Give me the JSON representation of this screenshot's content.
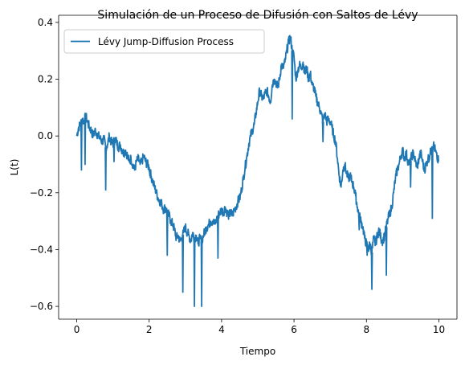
{
  "chart_data": {
    "type": "line",
    "title": "Simulación de un Proceso de Difusión con Saltos de Lévy",
    "xlabel": "Tiempo",
    "ylabel": "L(t)",
    "xlim": [
      -0.5,
      10.5
    ],
    "ylim": [
      -0.645,
      0.425
    ],
    "xticks": [
      0,
      2,
      4,
      6,
      8,
      10
    ],
    "yticks": [
      -0.6,
      -0.4,
      -0.2,
      0.0,
      0.2,
      0.4
    ],
    "xtick_labels": [
      "0",
      "2",
      "4",
      "6",
      "8",
      "10"
    ],
    "ytick_labels": [
      "−0.6",
      "−0.4",
      "−0.2",
      "0.0",
      "0.2",
      "0.4"
    ],
    "grid": false,
    "legend_position": "top-left",
    "colors": {
      "series": "#1f77b4"
    },
    "series": [
      {
        "name": "Lévy Jump-Diffusion Process",
        "x": [
          0.0,
          0.05,
          0.1,
          0.15,
          0.2,
          0.25,
          0.3,
          0.35,
          0.4,
          0.45,
          0.5,
          0.55,
          0.6,
          0.65,
          0.7,
          0.75,
          0.8,
          0.85,
          0.9,
          0.95,
          1.0,
          1.05,
          1.1,
          1.15,
          1.2,
          1.25,
          1.3,
          1.35,
          1.4,
          1.45,
          1.5,
          1.55,
          1.6,
          1.65,
          1.7,
          1.75,
          1.8,
          1.85,
          1.9,
          1.95,
          2.0,
          2.05,
          2.1,
          2.15,
          2.2,
          2.25,
          2.3,
          2.35,
          2.4,
          2.45,
          2.5,
          2.55,
          2.6,
          2.65,
          2.7,
          2.75,
          2.8,
          2.85,
          2.9,
          2.95,
          3.0,
          3.05,
          3.1,
          3.15,
          3.2,
          3.25,
          3.3,
          3.35,
          3.4,
          3.45,
          3.5,
          3.55,
          3.6,
          3.65,
          3.7,
          3.75,
          3.8,
          3.85,
          3.9,
          3.95,
          4.0,
          4.05,
          4.1,
          4.15,
          4.2,
          4.25,
          4.3,
          4.35,
          4.4,
          4.45,
          4.5,
          4.55,
          4.6,
          4.65,
          4.7,
          4.75,
          4.8,
          4.85,
          4.9,
          4.95,
          5.0,
          5.05,
          5.1,
          5.15,
          5.2,
          5.25,
          5.3,
          5.35,
          5.4,
          5.45,
          5.5,
          5.55,
          5.6,
          5.65,
          5.7,
          5.75,
          5.8,
          5.85,
          5.9,
          5.95,
          6.0,
          6.05,
          6.1,
          6.15,
          6.2,
          6.25,
          6.3,
          6.35,
          6.4,
          6.45,
          6.5,
          6.55,
          6.6,
          6.65,
          6.7,
          6.75,
          6.8,
          6.85,
          6.9,
          6.95,
          7.0,
          7.05,
          7.1,
          7.15,
          7.2,
          7.25,
          7.3,
          7.35,
          7.4,
          7.45,
          7.5,
          7.55,
          7.6,
          7.65,
          7.7,
          7.75,
          7.8,
          7.85,
          7.9,
          7.95,
          8.0,
          8.05,
          8.1,
          8.15,
          8.2,
          8.25,
          8.3,
          8.35,
          8.4,
          8.45,
          8.5,
          8.55,
          8.6,
          8.65,
          8.7,
          8.75,
          8.8,
          8.85,
          8.9,
          8.95,
          9.0,
          9.05,
          9.1,
          9.15,
          9.2,
          9.25,
          9.3,
          9.35,
          9.4,
          9.45,
          9.5,
          9.55,
          9.6,
          9.65,
          9.7,
          9.75,
          9.8,
          9.85,
          9.9,
          9.95,
          10.0
        ],
        "y": [
          0.0,
          0.03,
          0.04,
          0.06,
          0.05,
          0.07,
          0.05,
          0.03,
          0.02,
          0.0,
          0.02,
          0.01,
          0.0,
          -0.01,
          -0.02,
          -0.01,
          -0.04,
          -0.03,
          0.0,
          -0.02,
          -0.03,
          -0.01,
          -0.02,
          -0.04,
          -0.03,
          -0.05,
          -0.06,
          -0.05,
          -0.07,
          -0.09,
          -0.08,
          -0.1,
          -0.12,
          -0.09,
          -0.08,
          -0.1,
          -0.09,
          -0.07,
          -0.09,
          -0.1,
          -0.11,
          -0.14,
          -0.16,
          -0.18,
          -0.2,
          -0.22,
          -0.23,
          -0.24,
          -0.26,
          -0.25,
          -0.27,
          -0.28,
          -0.3,
          -0.31,
          -0.33,
          -0.36,
          -0.35,
          -0.37,
          -0.36,
          -0.34,
          -0.32,
          -0.34,
          -0.35,
          -0.37,
          -0.34,
          -0.36,
          -0.35,
          -0.38,
          -0.36,
          -0.37,
          -0.35,
          -0.33,
          -0.32,
          -0.31,
          -0.3,
          -0.3,
          -0.31,
          -0.3,
          -0.28,
          -0.27,
          -0.26,
          -0.27,
          -0.25,
          -0.27,
          -0.28,
          -0.27,
          -0.28,
          -0.26,
          -0.25,
          -0.23,
          -0.22,
          -0.19,
          -0.15,
          -0.11,
          -0.07,
          -0.03,
          0.0,
          0.02,
          0.04,
          0.08,
          0.12,
          0.16,
          0.14,
          0.13,
          0.15,
          0.16,
          0.14,
          0.12,
          0.18,
          0.2,
          0.19,
          0.17,
          0.2,
          0.25,
          0.24,
          0.26,
          0.3,
          0.33,
          0.35,
          0.3,
          0.28,
          0.2,
          0.23,
          0.25,
          0.24,
          0.26,
          0.22,
          0.24,
          0.2,
          0.22,
          0.18,
          0.17,
          0.14,
          0.12,
          0.1,
          0.08,
          0.05,
          0.08,
          0.05,
          0.06,
          0.05,
          0.03,
          0.0,
          -0.02,
          -0.08,
          -0.14,
          -0.18,
          -0.12,
          -0.1,
          -0.13,
          -0.15,
          -0.14,
          -0.16,
          -0.18,
          -0.21,
          -0.25,
          -0.28,
          -0.3,
          -0.32,
          -0.36,
          -0.38,
          -0.4,
          -0.38,
          -0.41,
          -0.36,
          -0.38,
          -0.35,
          -0.33,
          -0.36,
          -0.37,
          -0.35,
          -0.32,
          -0.29,
          -0.27,
          -0.25,
          -0.2,
          -0.15,
          -0.12,
          -0.1,
          -0.07,
          -0.05,
          -0.08,
          -0.06,
          -0.09,
          -0.1,
          -0.07,
          -0.06,
          -0.09,
          -0.11,
          -0.08,
          -0.06,
          -0.09,
          -0.12,
          -0.1,
          -0.08,
          -0.07,
          -0.04,
          -0.03,
          -0.05,
          -0.08,
          -0.09
        ],
        "jumps": [
          {
            "x": 0.13,
            "y": -0.12
          },
          {
            "x": 0.23,
            "y": -0.1
          },
          {
            "x": 0.8,
            "y": -0.19
          },
          {
            "x": 1.03,
            "y": -0.09
          },
          {
            "x": 2.02,
            "y": -0.14
          },
          {
            "x": 2.5,
            "y": -0.42
          },
          {
            "x": 2.93,
            "y": -0.55
          },
          {
            "x": 3.25,
            "y": -0.6
          },
          {
            "x": 3.45,
            "y": -0.6
          },
          {
            "x": 3.9,
            "y": -0.43
          },
          {
            "x": 5.95,
            "y": 0.06
          },
          {
            "x": 6.8,
            "y": -0.02
          },
          {
            "x": 7.8,
            "y": -0.33
          },
          {
            "x": 8.02,
            "y": -0.42
          },
          {
            "x": 8.15,
            "y": -0.54
          },
          {
            "x": 8.55,
            "y": -0.49
          },
          {
            "x": 9.22,
            "y": -0.18
          },
          {
            "x": 9.82,
            "y": -0.29
          }
        ]
      }
    ]
  }
}
